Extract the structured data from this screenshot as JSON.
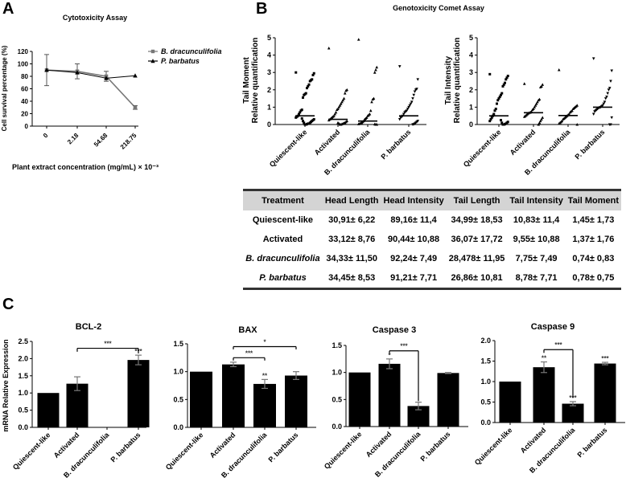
{
  "panel_labels": {
    "a": "A",
    "b": "B",
    "c": "C"
  },
  "chart_data": [
    {
      "id": "cytotox",
      "type": "line",
      "title": "Cytotoxicity Assay",
      "xlabel": "Plant extract concentration  (mg/mL) × 10⁻³",
      "ylabel": "Cell survival percentage (%)",
      "categories": [
        "0",
        "2.18",
        "54.68",
        "218.75"
      ],
      "ylim": [
        0,
        120
      ],
      "yticks": [
        0,
        20,
        40,
        60,
        80,
        100,
        120
      ],
      "legend_position": "right",
      "series": [
        {
          "name": "B. dracunculifolia",
          "marker": "square",
          "color": "#777777",
          "values": [
            90,
            88,
            80,
            30
          ],
          "errors": [
            25,
            12,
            8,
            3
          ]
        },
        {
          "name": "P. barbatus",
          "marker": "triangle",
          "color": "#000000",
          "values": [
            90,
            86,
            77,
            81
          ],
          "errors": [
            0,
            0,
            0,
            0
          ]
        }
      ]
    },
    {
      "id": "comet",
      "type": "scatter",
      "title": "Genotoxicity  Comet Assay",
      "categories": [
        "Quiescent-like",
        "Activated",
        "B. dracunculifolia",
        "P. barbatus"
      ],
      "ylim": [
        0,
        5
      ],
      "yticks": [
        0,
        1,
        2,
        3,
        4,
        5
      ],
      "plots": [
        {
          "ylabel": [
            "Tail Moment",
            "Relative quantification"
          ],
          "medians": [
            0.5,
            0.3,
            0.2,
            0.5
          ],
          "points": [
            [
              3.0,
              2.95,
              2.85,
              2.6,
              2.55,
              2.5,
              2.3,
              2.2,
              2.1,
              1.8,
              1.75,
              1.7,
              1.55,
              0.85,
              0.8,
              0.7,
              0.6,
              0.5,
              0.45,
              0.4,
              0.3,
              0.25,
              0.2,
              0.15,
              0.1,
              0.05,
              0.05,
              0.02,
              0.0,
              0.0,
              0.1,
              0.2,
              0.35
            ],
            [
              4.4,
              2.0,
              1.95,
              1.8,
              1.5,
              1.4,
              1.3,
              1.2,
              1.1,
              1.0,
              0.9,
              0.85,
              0.7,
              0.6,
              0.5,
              0.45,
              0.4,
              0.35,
              0.3,
              0.25,
              0.2,
              0.15,
              0.1,
              0.08,
              0.05,
              0.03,
              0.0,
              0.0,
              0.05,
              0.1
            ],
            [
              4.9,
              3.3,
              3.15,
              3.0,
              1.5,
              1.45,
              1.3,
              0.8,
              0.6,
              0.55,
              0.5,
              0.4,
              0.35,
              0.3,
              0.2,
              0.15,
              0.1,
              0.08,
              0.05,
              0.03,
              0.0,
              0.0,
              0.02
            ],
            [
              3.35,
              2.6,
              2.05,
              2.0,
              1.9,
              1.7,
              1.5,
              1.3,
              1.2,
              1.1,
              1.0,
              0.9,
              0.8,
              0.75,
              0.7,
              0.6,
              0.5,
              0.45,
              0.4,
              0.3,
              0.2,
              0.15,
              0.1,
              0.05,
              0.02,
              0.0
            ]
          ]
        },
        {
          "ylabel": [
            "Tail Intensity",
            "Relative quantification"
          ],
          "medians": [
            0.5,
            0.68,
            0.52,
            1.0
          ],
          "points": [
            [
              2.9,
              2.8,
              2.7,
              2.6,
              2.4,
              2.3,
              2.2,
              1.8,
              1.7,
              1.6,
              1.5,
              1.4,
              1.2,
              0.9,
              0.8,
              0.6,
              0.5,
              0.4,
              0.3,
              0.2,
              0.15,
              0.1,
              0.05,
              0.02,
              0.0,
              0.0,
              0.1,
              0.25
            ],
            [
              2.35,
              2.3,
              2.2,
              2.15,
              1.45,
              1.4,
              1.3,
              1.2,
              1.1,
              1.0,
              0.9,
              0.85,
              0.75,
              0.7,
              0.68,
              0.65,
              0.6,
              0.55,
              0.5,
              0.45,
              0.4,
              0.3,
              0.2,
              0.1,
              0.0
            ],
            [
              3.15,
              1.1,
              1.05,
              1.0,
              0.95,
              0.9,
              0.8,
              0.75,
              0.7,
              0.6,
              0.55,
              0.5,
              0.45,
              0.4,
              0.35,
              0.3,
              0.2,
              0.15,
              0.1,
              0.05,
              0.0
            ],
            [
              3.8,
              3.1,
              2.5,
              2.1,
              2.0,
              1.8,
              1.6,
              1.5,
              1.3,
              1.2,
              1.1,
              1.05,
              1.0,
              0.98,
              0.95,
              0.9,
              0.85,
              0.8,
              0.75,
              0.6,
              0.4,
              0.0,
              0.0
            ]
          ]
        }
      ]
    },
    {
      "id": "comet-table",
      "type": "table",
      "columns": [
        "Treatment",
        "Head Length",
        "Head Intensity",
        "Tail Length",
        "Tail Intensity",
        "Tail Moment"
      ],
      "rows": [
        [
          "Quiescent-like",
          "30,91± 6,22",
          "89,16± 11,4",
          "34,99± 18,53",
          "10,83± 11,4",
          "1,45± 1,73"
        ],
        [
          "Activated",
          "33,12± 8,76",
          "90,44± 10,88",
          "36,07± 17,72",
          "9,55± 10,88",
          "1,37± 1,76"
        ],
        [
          "B. dracunculifolia",
          "34,33± 11,50",
          "92,24± 7,49",
          "28,478± 11,95",
          "7,75± 7,49",
          "0,74± 0,83"
        ],
        [
          "P. barbatus",
          "34,45± 8,53",
          "91,21± 7,71",
          "26,86± 10,81",
          "8,78± 7,71",
          "0,78± 0,75"
        ]
      ],
      "italic_rows": [
        2,
        3
      ]
    },
    {
      "id": "mrna",
      "type": "bar",
      "ylabel": "mRNA Relative Expression",
      "categories": [
        "Quiescent-like",
        "Activated",
        "B. dracunculifolia",
        "P. barbatus"
      ],
      "panels": [
        {
          "title": "BCL-2",
          "ylim": [
            0,
            2.5
          ],
          "yticks": [
            "0.0",
            "0.5",
            "1.0",
            "1.5",
            "2.0",
            "2.5"
          ],
          "values": [
            1.0,
            1.27,
            null,
            1.96
          ],
          "errors": [
            0,
            0.2,
            0,
            0.14
          ],
          "stars": [
            "",
            "",
            "",
            "***"
          ],
          "brackets": [
            {
              "from": 1,
              "to": 3,
              "y": 2.3,
              "drop_to": [
                2.2,
                2.15
              ],
              "label": "***"
            }
          ]
        },
        {
          "title": "BAX",
          "ylim": [
            0,
            1.5
          ],
          "yticks": [
            "0.0",
            "0.5",
            "1.0",
            "1.5"
          ],
          "values": [
            1.0,
            1.13,
            0.78,
            0.93
          ],
          "errors": [
            0,
            0.04,
            0.08,
            0.07
          ],
          "stars": [
            "",
            "",
            "**",
            ""
          ],
          "brackets": [
            {
              "from": 1,
              "to": 2,
              "y": 1.25,
              "drop_to": [
                1.2,
                1.2
              ],
              "label": "***"
            },
            {
              "from": 1,
              "to": 3,
              "y": 1.45,
              "drop_to": [
                1.4,
                1.4
              ],
              "label": "*"
            }
          ]
        },
        {
          "title": "Caspase 3",
          "ylim": [
            0,
            1.5
          ],
          "yticks": [
            "0.0",
            "0.5",
            "1.0",
            "1.5"
          ],
          "values": [
            1.0,
            1.16,
            0.38,
            0.99
          ],
          "errors": [
            0,
            0.09,
            0.07,
            0.01
          ],
          "stars": [
            "",
            "*",
            "",
            ""
          ],
          "brackets": [
            {
              "from": 1,
              "to": 2,
              "y": 1.4,
              "drop_to": [
                1.35,
                0.47
              ],
              "label": "***"
            }
          ]
        },
        {
          "title": "Caspase 9",
          "ylim": [
            0,
            2.0
          ],
          "yticks": [
            "0.0",
            "0.5",
            "1.0",
            "1.5",
            "2.0"
          ],
          "values": [
            1.0,
            1.35,
            0.46,
            1.44
          ],
          "errors": [
            0,
            0.13,
            0.05,
            0.03
          ],
          "stars": [
            "",
            "**",
            "***",
            "***"
          ],
          "brackets": [
            {
              "from": 1,
              "to": 2,
              "y": 1.78,
              "drop_to": [
                1.7,
                0.6
              ],
              "label": "***"
            }
          ]
        }
      ]
    }
  ]
}
